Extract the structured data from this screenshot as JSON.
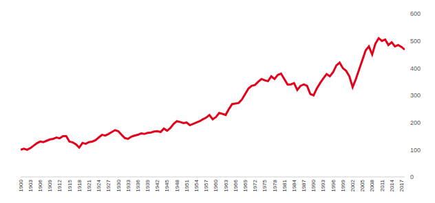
{
  "chart_data": {
    "type": "line",
    "x": [
      1900,
      1901,
      1902,
      1903,
      1904,
      1905,
      1906,
      1907,
      1908,
      1909,
      1910,
      1911,
      1912,
      1913,
      1914,
      1915,
      1916,
      1917,
      1918,
      1919,
      1920,
      1921,
      1922,
      1923,
      1924,
      1925,
      1926,
      1927,
      1928,
      1929,
      1930,
      1931,
      1932,
      1933,
      1934,
      1935,
      1936,
      1937,
      1938,
      1939,
      1940,
      1941,
      1942,
      1943,
      1944,
      1945,
      1946,
      1947,
      1948,
      1949,
      1950,
      1951,
      1952,
      1953,
      1954,
      1955,
      1956,
      1957,
      1958,
      1959,
      1960,
      1961,
      1962,
      1963,
      1964,
      1965,
      1966,
      1967,
      1968,
      1969,
      1970,
      1971,
      1972,
      1973,
      1974,
      1975,
      1976,
      1977,
      1978,
      1979,
      1980,
      1981,
      1982,
      1983,
      1984,
      1985,
      1986,
      1987,
      1988,
      1989,
      1990,
      1991,
      1992,
      1993,
      1994,
      1995,
      1996,
      1997,
      1998,
      1999,
      2000,
      2001,
      2002,
      2003,
      2004,
      2005,
      2006,
      2007,
      2008,
      2009,
      2010,
      2011,
      2012,
      2013,
      2014,
      2015,
      2016,
      2017,
      2018
    ],
    "values": [
      100,
      104,
      100,
      106,
      115,
      124,
      130,
      128,
      133,
      138,
      140,
      145,
      142,
      150,
      150,
      130,
      127,
      120,
      108,
      125,
      122,
      128,
      130,
      135,
      145,
      155,
      152,
      158,
      165,
      172,
      168,
      155,
      143,
      140,
      148,
      152,
      155,
      160,
      158,
      162,
      163,
      167,
      168,
      165,
      178,
      170,
      180,
      195,
      205,
      202,
      198,
      200,
      190,
      195,
      200,
      205,
      212,
      218,
      228,
      212,
      220,
      235,
      232,
      228,
      250,
      268,
      270,
      272,
      285,
      305,
      325,
      335,
      338,
      350,
      360,
      355,
      352,
      370,
      360,
      375,
      380,
      360,
      340,
      340,
      345,
      320,
      335,
      340,
      335,
      305,
      300,
      325,
      345,
      362,
      378,
      370,
      385,
      410,
      420,
      400,
      390,
      370,
      330,
      360,
      395,
      430,
      465,
      480,
      450,
      490,
      510,
      500,
      505,
      485,
      495,
      480,
      485,
      478,
      468
    ],
    "color": "#e3001b",
    "xlim": [
      1900,
      2018
    ],
    "xticks": [
      1900,
      1903,
      1906,
      1909,
      1912,
      1915,
      1918,
      1921,
      1924,
      1927,
      1930,
      1933,
      1936,
      1939,
      1942,
      1945,
      1948,
      1951,
      1954,
      1957,
      1960,
      1963,
      1966,
      1969,
      1972,
      1975,
      1978,
      1981,
      1984,
      1987,
      1990,
      1993,
      1996,
      1999,
      2002,
      2005,
      2008,
      2011,
      2014,
      2017
    ],
    "ylim": [
      0,
      600
    ],
    "yticks": [
      0,
      100,
      200,
      300,
      400,
      500,
      600
    ],
    "grid": false
  }
}
